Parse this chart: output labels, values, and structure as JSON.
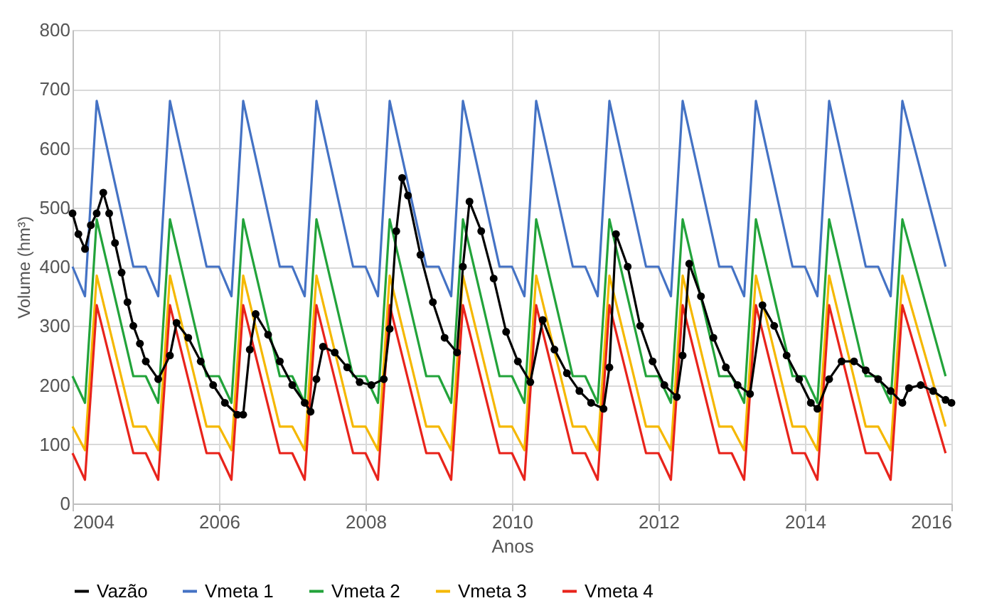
{
  "chart_data": {
    "type": "line",
    "xlabel": "Anos",
    "ylabel": "Volume (hm³)",
    "xlim": [
      2004,
      2016
    ],
    "xticks": [
      2004,
      2006,
      2008,
      2010,
      2012,
      2014,
      2016
    ],
    "ylim": [
      0,
      800
    ],
    "yticks": [
      0,
      100,
      200,
      300,
      400,
      500,
      600,
      700,
      800
    ],
    "grid": true,
    "legend": "bottom",
    "series": [
      {
        "name": "Vazão",
        "color": "#000000",
        "marker": "circle",
        "x": [
          2004,
          2004.08,
          2004.17,
          2004.25,
          2004.33,
          2004.42,
          2004.5,
          2004.58,
          2004.67,
          2004.75,
          2004.83,
          2004.92,
          2005,
          2005.17,
          2005.33,
          2005.42,
          2005.58,
          2005.75,
          2005.92,
          2006.08,
          2006.25,
          2006.33,
          2006.42,
          2006.5,
          2006.67,
          2006.83,
          2007,
          2007.17,
          2007.25,
          2007.33,
          2007.42,
          2007.58,
          2007.75,
          2007.92,
          2008.08,
          2008.25,
          2008.33,
          2008.42,
          2008.5,
          2008.58,
          2008.75,
          2008.92,
          2009.08,
          2009.25,
          2009.33,
          2009.42,
          2009.58,
          2009.75,
          2009.92,
          2010.08,
          2010.25,
          2010.42,
          2010.58,
          2010.75,
          2010.92,
          2011.08,
          2011.25,
          2011.33,
          2011.42,
          2011.58,
          2011.75,
          2011.92,
          2012.08,
          2012.25,
          2012.33,
          2012.42,
          2012.58,
          2012.75,
          2012.92,
          2013.08,
          2013.25,
          2013.42,
          2013.58,
          2013.75,
          2013.92,
          2014.08,
          2014.17,
          2014.33,
          2014.5,
          2014.67,
          2014.83,
          2015,
          2015.17,
          2015.33,
          2015.42,
          2015.58,
          2015.75,
          2015.92,
          2016
        ],
        "values": [
          490,
          455,
          430,
          470,
          490,
          525,
          490,
          440,
          390,
          340,
          300,
          270,
          240,
          210,
          250,
          305,
          280,
          240,
          200,
          170,
          150,
          150,
          260,
          320,
          285,
          240,
          200,
          170,
          155,
          210,
          265,
          255,
          230,
          205,
          200,
          210,
          295,
          460,
          550,
          520,
          420,
          340,
          280,
          255,
          400,
          510,
          460,
          380,
          290,
          240,
          205,
          310,
          260,
          220,
          190,
          170,
          160,
          230,
          455,
          400,
          300,
          240,
          200,
          180,
          250,
          405,
          350,
          280,
          230,
          200,
          185,
          335,
          300,
          250,
          210,
          170,
          160,
          210,
          240,
          240,
          225,
          210,
          190,
          170,
          195,
          200,
          190,
          175,
          170
        ]
      },
      {
        "name": "Vmeta 1",
        "color": "#4472c4",
        "x": [
          2004,
          2004.17,
          2004.33,
          2004.83,
          2005,
          2005.17,
          2005.33,
          2005.83,
          2006,
          2006.17,
          2006.33,
          2006.83,
          2007,
          2007.17,
          2007.33,
          2007.83,
          2008,
          2008.17,
          2008.33,
          2008.83,
          2009,
          2009.17,
          2009.33,
          2009.83,
          2010,
          2010.17,
          2010.33,
          2010.83,
          2011,
          2011.17,
          2011.33,
          2011.83,
          2012,
          2012.17,
          2012.33,
          2012.83,
          2013,
          2013.17,
          2013.33,
          2013.83,
          2014,
          2014.17,
          2014.33,
          2014.83,
          2015,
          2015.17,
          2015.33,
          2015.92
        ],
        "values": [
          400,
          350,
          680,
          400,
          400,
          350,
          680,
          400,
          400,
          350,
          680,
          400,
          400,
          350,
          680,
          400,
          400,
          350,
          680,
          400,
          400,
          350,
          680,
          400,
          400,
          350,
          680,
          400,
          400,
          350,
          680,
          400,
          400,
          350,
          680,
          400,
          400,
          350,
          680,
          400,
          400,
          350,
          680,
          400,
          400,
          350,
          680,
          400
        ]
      },
      {
        "name": "Vmeta 2",
        "color": "#22a33a",
        "x": [
          2004,
          2004.17,
          2004.33,
          2004.83,
          2005,
          2005.17,
          2005.33,
          2005.83,
          2006,
          2006.17,
          2006.33,
          2006.83,
          2007,
          2007.17,
          2007.33,
          2007.83,
          2008,
          2008.17,
          2008.33,
          2008.83,
          2009,
          2009.17,
          2009.33,
          2009.83,
          2010,
          2010.17,
          2010.33,
          2010.83,
          2011,
          2011.17,
          2011.33,
          2011.83,
          2012,
          2012.17,
          2012.33,
          2012.83,
          2013,
          2013.17,
          2013.33,
          2013.83,
          2014,
          2014.17,
          2014.33,
          2014.83,
          2015,
          2015.17,
          2015.33,
          2015.92
        ],
        "values": [
          215,
          170,
          480,
          215,
          215,
          170,
          480,
          215,
          215,
          170,
          480,
          215,
          215,
          170,
          480,
          215,
          215,
          170,
          480,
          215,
          215,
          170,
          480,
          215,
          215,
          170,
          480,
          215,
          215,
          170,
          480,
          215,
          215,
          170,
          480,
          215,
          215,
          170,
          480,
          215,
          215,
          170,
          480,
          215,
          215,
          170,
          480,
          215
        ]
      },
      {
        "name": "Vmeta 3",
        "color": "#f5b800",
        "x": [
          2004,
          2004.17,
          2004.33,
          2004.83,
          2005,
          2005.17,
          2005.33,
          2005.83,
          2006,
          2006.17,
          2006.33,
          2006.83,
          2007,
          2007.17,
          2007.33,
          2007.83,
          2008,
          2008.17,
          2008.33,
          2008.83,
          2009,
          2009.17,
          2009.33,
          2009.83,
          2010,
          2010.17,
          2010.33,
          2010.83,
          2011,
          2011.17,
          2011.33,
          2011.83,
          2012,
          2012.17,
          2012.33,
          2012.83,
          2013,
          2013.17,
          2013.33,
          2013.83,
          2014,
          2014.17,
          2014.33,
          2014.83,
          2015,
          2015.17,
          2015.33,
          2015.92
        ],
        "values": [
          130,
          90,
          385,
          130,
          130,
          90,
          385,
          130,
          130,
          90,
          385,
          130,
          130,
          90,
          385,
          130,
          130,
          90,
          385,
          130,
          130,
          90,
          385,
          130,
          130,
          90,
          385,
          130,
          130,
          90,
          385,
          130,
          130,
          90,
          385,
          130,
          130,
          90,
          385,
          130,
          130,
          90,
          385,
          130,
          130,
          90,
          385,
          130
        ]
      },
      {
        "name": "Vmeta 4",
        "color": "#e8231b",
        "x": [
          2004,
          2004.17,
          2004.33,
          2004.83,
          2005,
          2005.17,
          2005.33,
          2005.83,
          2006,
          2006.17,
          2006.33,
          2006.83,
          2007,
          2007.17,
          2007.33,
          2007.83,
          2008,
          2008.17,
          2008.33,
          2008.83,
          2009,
          2009.17,
          2009.33,
          2009.83,
          2010,
          2010.17,
          2010.33,
          2010.83,
          2011,
          2011.17,
          2011.33,
          2011.83,
          2012,
          2012.17,
          2012.33,
          2012.83,
          2013,
          2013.17,
          2013.33,
          2013.83,
          2014,
          2014.17,
          2014.33,
          2014.83,
          2015,
          2015.17,
          2015.33,
          2015.92
        ],
        "values": [
          85,
          40,
          335,
          85,
          85,
          40,
          335,
          85,
          85,
          40,
          335,
          85,
          85,
          40,
          335,
          85,
          85,
          40,
          335,
          85,
          85,
          40,
          335,
          85,
          85,
          40,
          335,
          85,
          85,
          40,
          335,
          85,
          85,
          40,
          335,
          85,
          85,
          40,
          335,
          85,
          85,
          40,
          335,
          85,
          85,
          40,
          335,
          85
        ]
      }
    ]
  }
}
